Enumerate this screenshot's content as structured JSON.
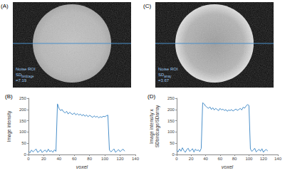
{
  "images": [
    {
      "label": "(A)",
      "roi_text": "Noise ROI",
      "sd_text": "SD",
      "sd_subscript": "birdcage",
      "sd_value": "=7.19"
    },
    {
      "label": "(C)",
      "roi_text": "Noise ROI",
      "sd_text": "SD",
      "sd_subscript": "array",
      "sd_value": "=3.67"
    }
  ],
  "chart_data": [
    {
      "type": "line",
      "title": "(B)",
      "x_label": "voxel",
      "y_label": "Image intensity",
      "color": "#4a8fc9",
      "grid": false,
      "xlim": [
        0,
        140
      ],
      "xticks": [
        0,
        20,
        40,
        60,
        80,
        100,
        120,
        140
      ],
      "ylim": [
        0,
        250
      ],
      "yticks": [
        0,
        50,
        100,
        150,
        200,
        250
      ],
      "x": [
        0,
        2,
        4,
        6,
        8,
        10,
        12,
        14,
        16,
        18,
        20,
        22,
        24,
        26,
        28,
        30,
        32,
        34,
        36,
        38,
        40,
        42,
        44,
        46,
        48,
        50,
        52,
        54,
        56,
        58,
        60,
        62,
        64,
        66,
        68,
        70,
        72,
        74,
        76,
        78,
        80,
        82,
        84,
        86,
        88,
        90,
        92,
        94,
        96,
        98,
        100,
        102,
        104,
        106,
        108,
        110,
        112,
        114,
        116,
        118,
        120,
        122,
        124,
        126
      ],
      "values": [
        15,
        8,
        20,
        12,
        18,
        25,
        10,
        14,
        22,
        9,
        16,
        20,
        11,
        24,
        13,
        18,
        10,
        21,
        14,
        225,
        205,
        195,
        200,
        190,
        185,
        192,
        180,
        188,
        182,
        178,
        185,
        176,
        182,
        175,
        180,
        172,
        178,
        170,
        176,
        168,
        174,
        170,
        165,
        172,
        166,
        170,
        163,
        168,
        165,
        170,
        168,
        172,
        175,
        20,
        12,
        18,
        25,
        10,
        16,
        22,
        13,
        19,
        24,
        15
      ]
    },
    {
      "type": "line",
      "title": "(D)",
      "x_label": "voxel",
      "y_label": [
        "Image intensity x",
        "SDbirdcage/SDarray"
      ],
      "color": "#4a8fc9",
      "grid": false,
      "xlim": [
        0,
        140
      ],
      "xticks": [
        0,
        20,
        40,
        60,
        80,
        100,
        120,
        140
      ],
      "ylim": [
        0,
        250
      ],
      "yticks": [
        0,
        50,
        100,
        150,
        200,
        250
      ],
      "x": [
        0,
        2,
        4,
        6,
        8,
        10,
        12,
        14,
        16,
        18,
        20,
        22,
        24,
        26,
        28,
        30,
        32,
        34,
        36,
        38,
        40,
        42,
        44,
        46,
        48,
        50,
        52,
        54,
        56,
        58,
        60,
        62,
        64,
        66,
        68,
        70,
        72,
        74,
        76,
        78,
        80,
        82,
        84,
        86,
        88,
        90,
        92,
        94,
        96,
        98,
        100,
        102,
        104,
        106,
        108,
        110,
        112,
        114,
        116,
        118,
        120,
        122,
        124,
        126
      ],
      "values": [
        20,
        12,
        25,
        15,
        30,
        18,
        10,
        22,
        28,
        14,
        19,
        26,
        11,
        24,
        17,
        21,
        13,
        27,
        230,
        225,
        215,
        210,
        205,
        212,
        200,
        208,
        198,
        205,
        200,
        195,
        205,
        198,
        202,
        195,
        200,
        192,
        198,
        195,
        200,
        193,
        198,
        202,
        196,
        200,
        205,
        198,
        210,
        206,
        215,
        222,
        218,
        25,
        14,
        20,
        28,
        12,
        18,
        23,
        15,
        26,
        10,
        19,
        22,
        16
      ]
    }
  ]
}
